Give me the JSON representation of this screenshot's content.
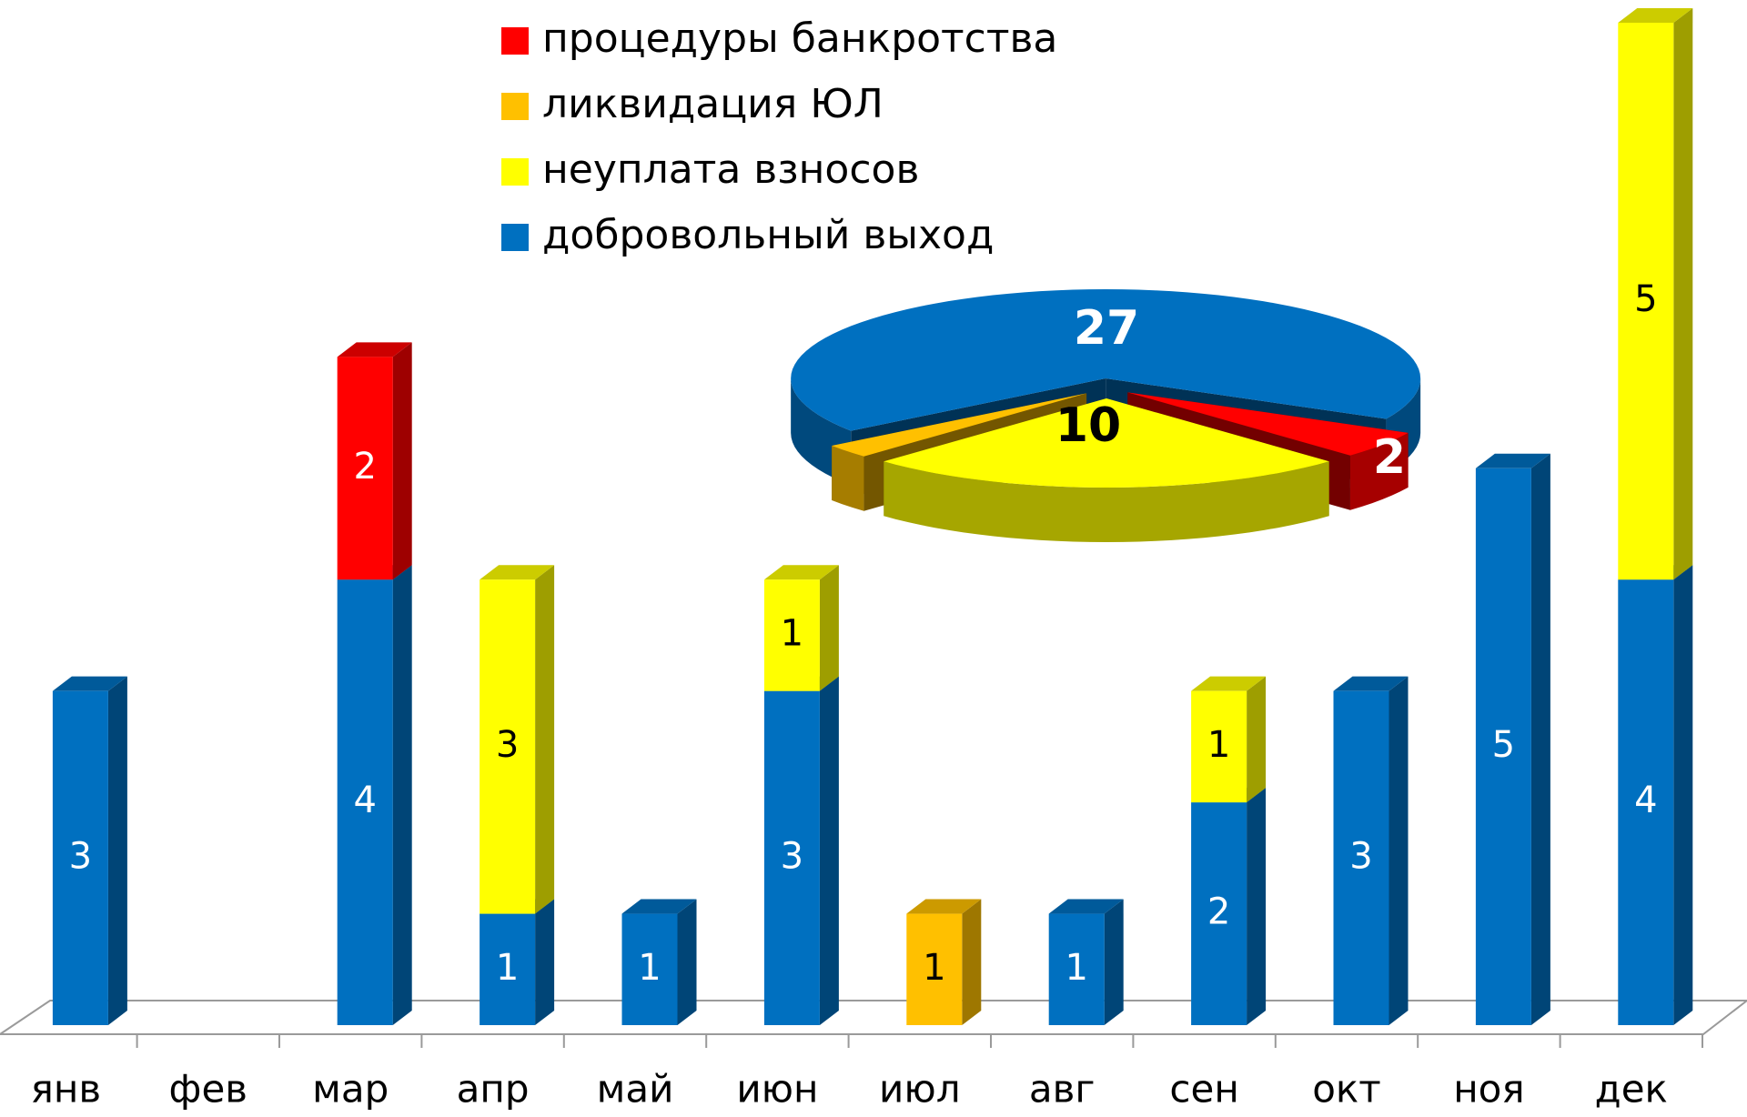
{
  "chart_data": [
    {
      "type": "bar",
      "stacked": true,
      "three_d": true,
      "categories": [
        "янв",
        "фев",
        "мар",
        "апр",
        "май",
        "июн",
        "июл",
        "авг",
        "сен",
        "окт",
        "ноя",
        "дек"
      ],
      "ylim": [
        0,
        9
      ],
      "series": [
        {
          "name": "добровольный выход",
          "color": "#0070c0",
          "values": [
            3,
            null,
            4,
            1,
            1,
            3,
            null,
            1,
            2,
            3,
            5,
            4
          ]
        },
        {
          "name": "ликвидация ЮЛ",
          "color": "#ffc000",
          "values": [
            null,
            null,
            null,
            null,
            null,
            null,
            1,
            null,
            null,
            null,
            null,
            null
          ]
        },
        {
          "name": "неуплата взносов",
          "color": "#ffff00",
          "values": [
            null,
            null,
            null,
            3,
            null,
            1,
            null,
            null,
            1,
            null,
            null,
            5
          ]
        },
        {
          "name": "процедуры банкротства",
          "color": "#ff0000",
          "values": [
            null,
            null,
            2,
            null,
            null,
            null,
            null,
            null,
            null,
            null,
            null,
            null
          ]
        }
      ],
      "legend_order": [
        3,
        1,
        2,
        0
      ]
    },
    {
      "type": "pie",
      "three_d": true,
      "values": [
        27,
        2,
        10,
        1
      ],
      "colors": [
        "#0070c0",
        "#ff0000",
        "#ffff00",
        "#ffc000"
      ]
    }
  ]
}
